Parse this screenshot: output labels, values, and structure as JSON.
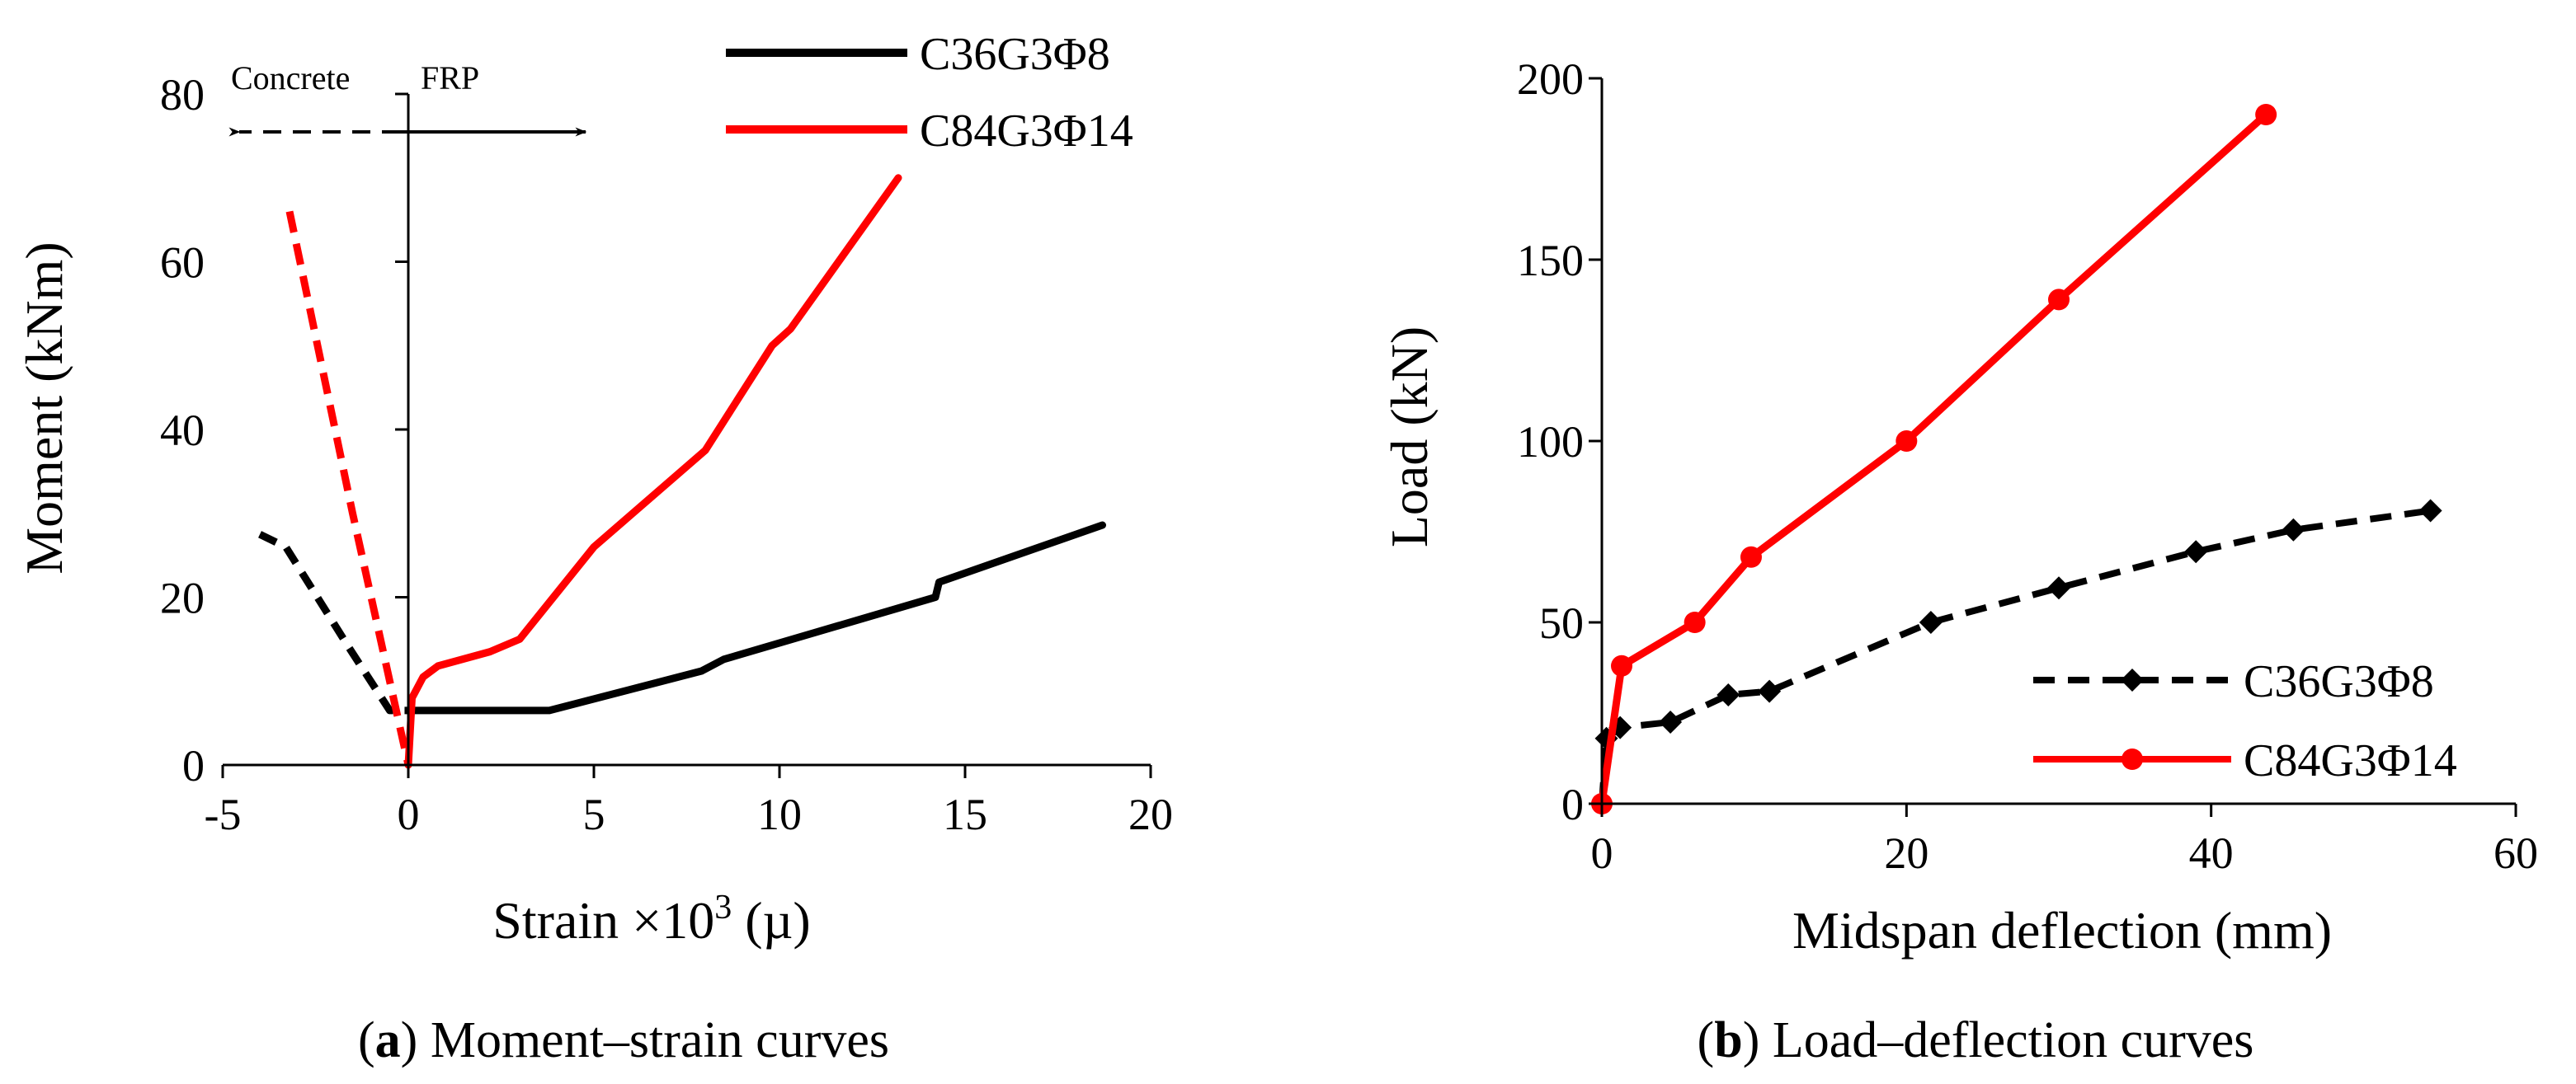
{
  "chart_data": [
    {
      "id": "a",
      "type": "line",
      "caption_letter": "a",
      "caption_text": "Moment–strain curves",
      "xlabel": "Strain ×10³ (µ)",
      "xlabel_base": "Strain ×10",
      "xlabel_exp": "3",
      "xlabel_unit": " (µ)",
      "ylabel": "Moment (kNm)",
      "xlim": [
        -5,
        20
      ],
      "ylim": [
        0,
        80
      ],
      "xticks": [
        -5,
        0,
        5,
        10,
        15,
        20
      ],
      "yticks": [
        0,
        20,
        40,
        60,
        80
      ],
      "grid": false,
      "legend_position": "top-right",
      "annotation": {
        "left_label": "Concrete",
        "right_label": "FRP"
      },
      "series": [
        {
          "name": "C36G3Φ8",
          "color": "#000000",
          "concrete_dashed": [
            [
              -4.0,
              27.5
            ],
            [
              -3.3,
              26
            ],
            [
              -1.6,
              14
            ],
            [
              -0.5,
              6.5
            ],
            [
              0,
              6.5
            ]
          ],
          "frp_solid": [
            [
              0,
              6.5
            ],
            [
              3.8,
              6.5
            ],
            [
              7.9,
              11.2
            ],
            [
              8.5,
              12.6
            ],
            [
              14.2,
              20
            ],
            [
              14.3,
              21.8
            ],
            [
              18.7,
              28.6
            ]
          ]
        },
        {
          "name": "C84G3Φ14",
          "color": "#ff0000",
          "concrete_dashed": [
            [
              -3.2,
              66
            ],
            [
              -1.5,
              30
            ],
            [
              -0.4,
              8
            ],
            [
              0,
              0
            ]
          ],
          "frp_solid": [
            [
              0,
              0
            ],
            [
              0.1,
              8
            ],
            [
              0.4,
              10.5
            ],
            [
              0.8,
              11.8
            ],
            [
              2.2,
              13.5
            ],
            [
              3.0,
              15
            ],
            [
              5.0,
              26
            ],
            [
              8.0,
              37.5
            ],
            [
              9.8,
              50
            ],
            [
              10.3,
              52
            ],
            [
              13.2,
              70
            ]
          ]
        }
      ]
    },
    {
      "id": "b",
      "type": "line",
      "caption_letter": "b",
      "caption_text": "Load–deflection curves",
      "xlabel": "Midspan deflection (mm)",
      "ylabel": "Load (kN)",
      "xlim": [
        0,
        60
      ],
      "ylim": [
        0,
        200
      ],
      "xticks": [
        0,
        20,
        40,
        60
      ],
      "yticks": [
        0,
        50,
        100,
        150,
        200
      ],
      "grid": false,
      "legend_position": "bottom-right",
      "series": [
        {
          "name": "C36G3Φ8",
          "color": "#000000",
          "style": "dashed",
          "marker": "diamond",
          "points": [
            [
              0,
              0
            ],
            [
              0.3,
              18
            ],
            [
              1.2,
              21
            ],
            [
              4.5,
              22.5
            ],
            [
              8.3,
              30
            ],
            [
              11.0,
              31
            ],
            [
              21.6,
              50
            ],
            [
              30.0,
              59.5
            ],
            [
              39.0,
              69.5
            ],
            [
              45.4,
              75.5
            ],
            [
              54.4,
              80.8
            ]
          ]
        },
        {
          "name": "C84G3Φ14",
          "color": "#ff0000",
          "style": "solid",
          "marker": "circle",
          "points": [
            [
              0,
              0
            ],
            [
              1.3,
              38
            ],
            [
              6.1,
              50
            ],
            [
              9.8,
              68
            ],
            [
              20.0,
              100
            ],
            [
              30.0,
              139
            ],
            [
              43.6,
              190
            ]
          ]
        }
      ]
    }
  ]
}
